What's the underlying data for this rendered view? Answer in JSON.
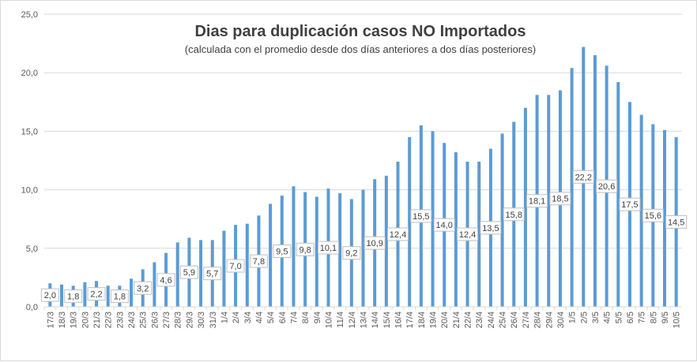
{
  "chart_data": {
    "type": "bar",
    "title": "Dias para duplicación casos NO Importados",
    "subtitle": "(calculada con el promedio  desde dos días anteriores a dos días posteriores)",
    "xlabel": "",
    "ylabel": "",
    "ylim": [
      0,
      25
    ],
    "yticks": [
      "0,0",
      "5,0",
      "10,0",
      "15,0",
      "20,0",
      "25,0"
    ],
    "ytick_values": [
      0,
      5,
      10,
      15,
      20,
      25
    ],
    "grid": true,
    "legend": "none",
    "colors": {
      "bar": "#5b9bd5",
      "grid": "#d9d9d9",
      "text": "#404040",
      "label_border": "#bfbfbf"
    },
    "categories": [
      "17/3",
      "18/3",
      "19/3",
      "20/3",
      "21/3",
      "22/3",
      "23/3",
      "24/3",
      "25/3",
      "26/3",
      "27/3",
      "28/3",
      "29/3",
      "30/3",
      "31/3",
      "1/4",
      "2/4",
      "3/4",
      "4/4",
      "5/4",
      "6/4",
      "7/4",
      "8/4",
      "9/4",
      "10/4",
      "11/4",
      "12/4",
      "13/4",
      "14/4",
      "15/4",
      "16/4",
      "17/4",
      "18/4",
      "19/4",
      "20/4",
      "21/4",
      "22/4",
      "23/4",
      "24/4",
      "25/4",
      "26/4",
      "27/4",
      "28/4",
      "29/4",
      "30/4",
      "1/5",
      "2/5",
      "3/5",
      "4/5",
      "5/5",
      "6/5",
      "7/5",
      "8/5",
      "9/5",
      "10/5"
    ],
    "values": [
      2.0,
      1.9,
      1.8,
      2.1,
      2.2,
      1.8,
      1.8,
      2.4,
      3.2,
      3.8,
      4.6,
      5.5,
      5.9,
      5.7,
      5.7,
      6.5,
      7.0,
      7.1,
      7.8,
      8.8,
      9.5,
      10.3,
      9.8,
      9.4,
      10.1,
      9.7,
      9.2,
      10.0,
      10.9,
      11.2,
      12.4,
      14.5,
      15.5,
      15.0,
      14.0,
      13.2,
      12.4,
      12.4,
      13.5,
      14.8,
      15.8,
      17.0,
      18.1,
      18.1,
      18.5,
      20.4,
      22.2,
      21.5,
      20.6,
      19.2,
      17.5,
      16.4,
      15.6,
      15.1,
      14.5
    ],
    "data_labels": [
      {
        "index": 0,
        "text": "2,0"
      },
      {
        "index": 2,
        "text": "1,8"
      },
      {
        "index": 4,
        "text": "2,2"
      },
      {
        "index": 6,
        "text": "1,8"
      },
      {
        "index": 8,
        "text": "3,2"
      },
      {
        "index": 10,
        "text": "4,6"
      },
      {
        "index": 12,
        "text": "5,9"
      },
      {
        "index": 14,
        "text": "5,7"
      },
      {
        "index": 16,
        "text": "7,0"
      },
      {
        "index": 18,
        "text": "7,8"
      },
      {
        "index": 20,
        "text": "9,5"
      },
      {
        "index": 22,
        "text": "9,8"
      },
      {
        "index": 24,
        "text": "10,1"
      },
      {
        "index": 26,
        "text": "9,2"
      },
      {
        "index": 28,
        "text": "10,9"
      },
      {
        "index": 30,
        "text": "12,4"
      },
      {
        "index": 32,
        "text": "15,5"
      },
      {
        "index": 34,
        "text": "14,0"
      },
      {
        "index": 36,
        "text": "12,4"
      },
      {
        "index": 38,
        "text": "13,5"
      },
      {
        "index": 40,
        "text": "15,8"
      },
      {
        "index": 42,
        "text": "18,1"
      },
      {
        "index": 44,
        "text": "18,5"
      },
      {
        "index": 46,
        "text": "22,2"
      },
      {
        "index": 48,
        "text": "20,6"
      },
      {
        "index": 50,
        "text": "17,5"
      },
      {
        "index": 52,
        "text": "15,6"
      },
      {
        "index": 54,
        "text": "14,5"
      }
    ]
  }
}
